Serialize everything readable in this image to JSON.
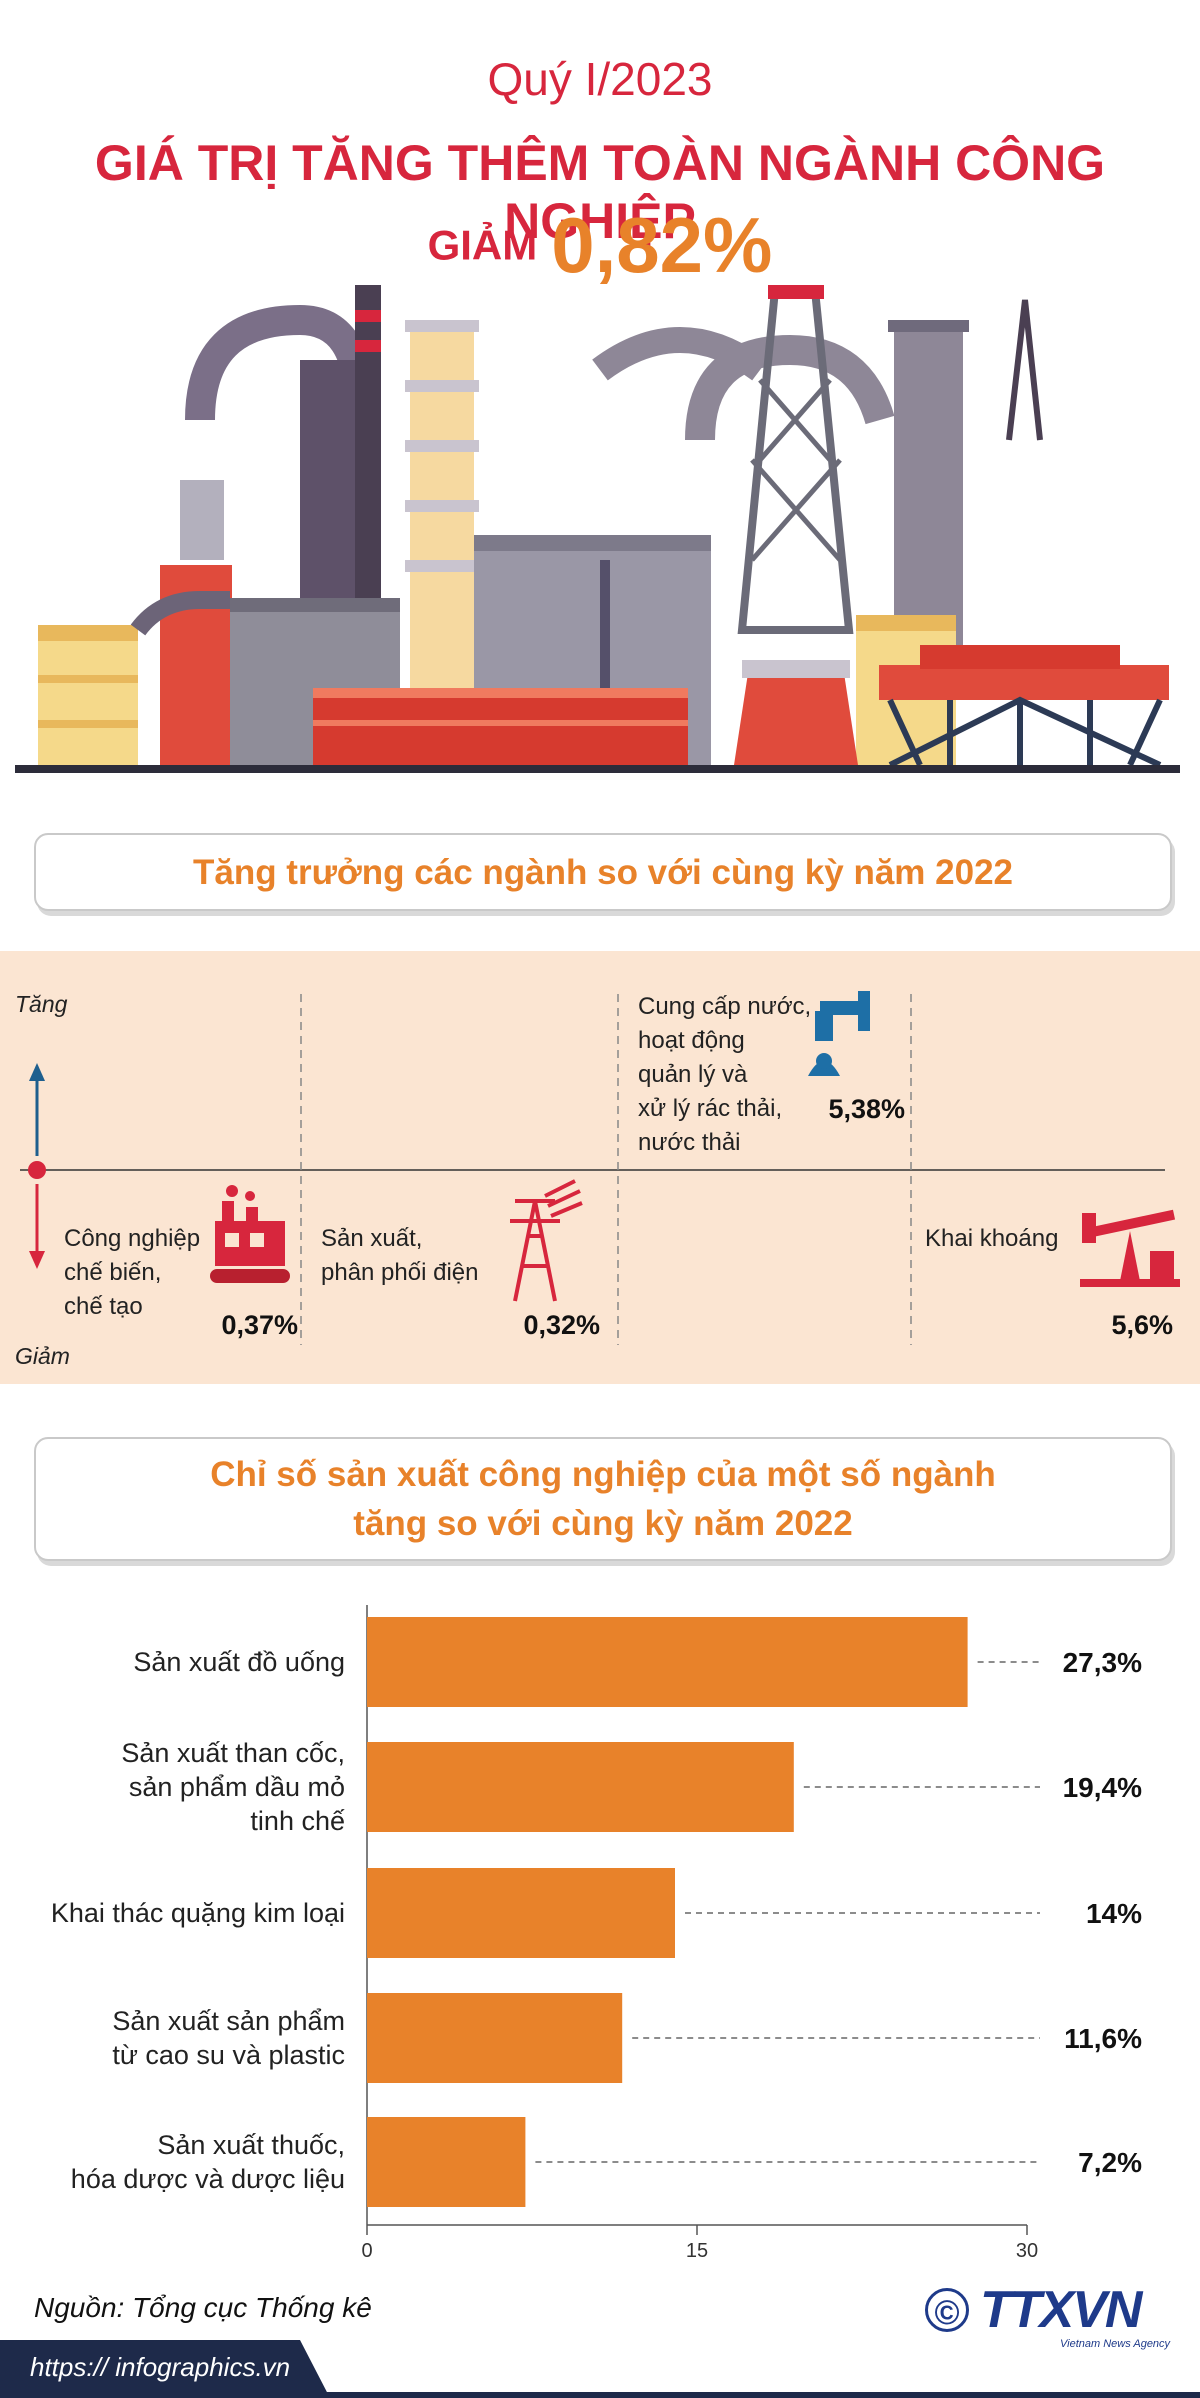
{
  "header": {
    "subtitle": "Quý I/2023",
    "title": "GIÁ TRỊ TĂNG THÊM TOÀN NGÀNH CÔNG NGHIỆP",
    "decrease_label": "GIẢM",
    "decrease_value": "0,82%"
  },
  "growth": {
    "title": "Tăng trưởng các ngành so với cùng kỳ năm 2022",
    "up_label": "Tăng",
    "down_label": "Giảm",
    "sectors": [
      {
        "label": "Công nghiệp\nchế biến,\nchế tạo",
        "value": "0,37%"
      },
      {
        "label": "Sản xuất,\nphân phối điện",
        "value": "0,32%"
      },
      {
        "label": "Cung cấp nước,\nhoạt động\nquản lý và\nxử lý rác thải,\nnước thải",
        "value": "5,38%"
      },
      {
        "label": "Khai khoáng",
        "value": "5,6%"
      }
    ]
  },
  "chart_data": {
    "type": "bar",
    "title": "Chỉ số sản xuất công nghiệp của một số ngành\ntăng so với cùng kỳ năm 2022",
    "categories": [
      "Sản xuất đồ uống",
      "Sản xuất than cốc,\nsản phẩm dầu mỏ\ntinh chế",
      "Khai thác quặng kim loại",
      "Sản xuất sản phẩm\ntừ cao su và plastic",
      "Sản xuất thuốc,\nhóa dược và dược liệu"
    ],
    "values": [
      27.3,
      19.4,
      14,
      11.6,
      7.2
    ],
    "value_labels": [
      "27,3%",
      "19,4%",
      "14%",
      "11,6%",
      "7,2%"
    ],
    "color": "#e8822a",
    "xlim": [
      0,
      30
    ],
    "xticks": [
      0,
      15,
      30
    ]
  },
  "footer": {
    "source": "Nguồn: Tổng cục Thống kê",
    "copyright": "©",
    "logo": "TTXVN",
    "logo_sub": "Vietnam News Agency",
    "url": "https:// infographics.vn"
  }
}
